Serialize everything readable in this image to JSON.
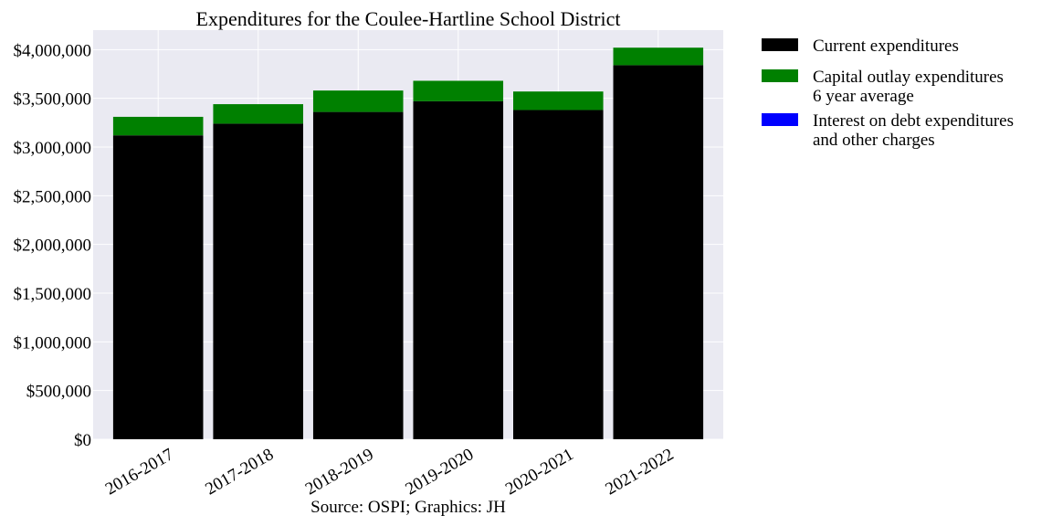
{
  "chart_data": {
    "type": "bar",
    "stacked": true,
    "title": "Expenditures for the Coulee-Hartline School District",
    "source": "Source: OSPI; Graphics: JH",
    "categories": [
      "2016-2017",
      "2017-2018",
      "2018-2019",
      "2019-2020",
      "2020-2021",
      "2021-2022"
    ],
    "series": [
      {
        "name": "Current expenditures",
        "color": "#000000",
        "values": [
          3120000,
          3240000,
          3360000,
          3470000,
          3380000,
          3840000
        ]
      },
      {
        "name": "Capital outlay expenditures\n6 year average",
        "color": "#008000",
        "values": [
          190000,
          200000,
          220000,
          210000,
          190000,
          180000
        ]
      },
      {
        "name": "Interest on debt expenditures\nand other charges",
        "color": "#0000ff",
        "values": [
          0,
          0,
          0,
          0,
          0,
          0
        ]
      }
    ],
    "ylim": [
      0,
      4200000
    ],
    "yticks": [
      0,
      500000,
      1000000,
      1500000,
      2000000,
      2500000,
      3000000,
      3500000,
      4000000
    ],
    "ytick_labels": [
      "$0",
      "$500,000",
      "$1,000,000",
      "$1,500,000",
      "$2,000,000",
      "$2,500,000",
      "$3,000,000",
      "$3,500,000",
      "$4,000,000"
    ],
    "xlabel": "",
    "ylabel": "",
    "grid": true,
    "legend_position": "outside-right"
  },
  "colors": {
    "plot_background": "#eaeaf2",
    "grid": "#ffffff"
  }
}
